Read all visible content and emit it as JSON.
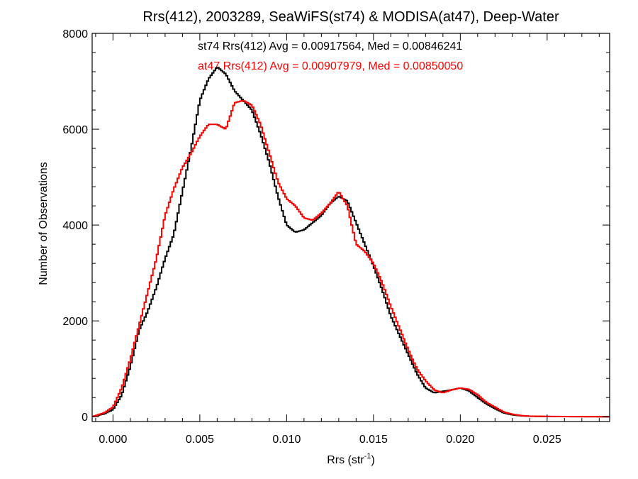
{
  "chart_data": {
    "type": "line",
    "title": "Rrs(412), 2003289, SeaWiFS(st74) & MODISA(at47), Deep-Water",
    "xlabel": "Rrs (str",
    "xlabel_sup": "-1",
    "xlabel_close": ")",
    "ylabel": "Number of Observations",
    "xlim": [
      -0.0012,
      0.0286
    ],
    "ylim": [
      -100,
      8000
    ],
    "x_ticks": [
      {
        "value": 0.0,
        "label": "0.000"
      },
      {
        "value": 0.005,
        "label": "0.005"
      },
      {
        "value": 0.01,
        "label": "0.010"
      },
      {
        "value": 0.015,
        "label": "0.015"
      },
      {
        "value": 0.02,
        "label": "0.020"
      },
      {
        "value": 0.025,
        "label": "0.025"
      }
    ],
    "y_ticks": [
      {
        "value": 0,
        "label": "0"
      },
      {
        "value": 2000,
        "label": "2000"
      },
      {
        "value": 4000,
        "label": "4000"
      },
      {
        "value": 6000,
        "label": "6000"
      },
      {
        "value": 8000,
        "label": "8000"
      }
    ],
    "grid": false,
    "annotations": [
      {
        "text": "st74 Rrs(412) Avg = 0.00917564, Med = 0.00846241",
        "color": "#000000"
      },
      {
        "text": "at47 Rrs(412) Avg = 0.00907979, Med = 0.00850050",
        "color": "#ff0000"
      }
    ],
    "series": [
      {
        "color": "#000000",
        "x": [
          -0.0012,
          -0.0005,
          0.0,
          0.0005,
          0.001,
          0.0015,
          0.002,
          0.0025,
          0.003,
          0.0035,
          0.004,
          0.0045,
          0.005,
          0.0055,
          0.006,
          0.0065,
          0.007,
          0.0075,
          0.008,
          0.0085,
          0.009,
          0.0095,
          0.01,
          0.0105,
          0.011,
          0.0115,
          0.012,
          0.0125,
          0.013,
          0.0135,
          0.014,
          0.0145,
          0.015,
          0.0155,
          0.016,
          0.0165,
          0.017,
          0.0175,
          0.018,
          0.0185,
          0.019,
          0.0195,
          0.02,
          0.0205,
          0.021,
          0.0215,
          0.022,
          0.0225,
          0.023,
          0.0235,
          0.024,
          0.025,
          0.026,
          0.027,
          0.0286
        ],
        "y": [
          0,
          60,
          150,
          450,
          1050,
          1800,
          2200,
          2700,
          3300,
          3800,
          4700,
          5600,
          6600,
          7050,
          7300,
          7150,
          6800,
          6600,
          6400,
          5900,
          5300,
          4600,
          4000,
          3850,
          3900,
          4050,
          4200,
          4450,
          4600,
          4500,
          4050,
          3600,
          3150,
          2650,
          2100,
          1700,
          1300,
          900,
          600,
          500,
          530,
          560,
          600,
          540,
          400,
          270,
          170,
          80,
          40,
          20,
          10,
          5,
          3,
          2,
          0
        ]
      },
      {
        "color": "#ff0000",
        "x": [
          -0.0012,
          -0.0005,
          0.0,
          0.0005,
          0.001,
          0.0015,
          0.002,
          0.0025,
          0.003,
          0.0035,
          0.004,
          0.0045,
          0.005,
          0.0055,
          0.006,
          0.0065,
          0.007,
          0.0075,
          0.008,
          0.0085,
          0.009,
          0.0095,
          0.01,
          0.0105,
          0.011,
          0.0115,
          0.012,
          0.0125,
          0.013,
          0.0135,
          0.014,
          0.0145,
          0.015,
          0.0155,
          0.016,
          0.0165,
          0.017,
          0.0175,
          0.018,
          0.0185,
          0.019,
          0.0195,
          0.02,
          0.0205,
          0.021,
          0.0215,
          0.022,
          0.0225,
          0.023,
          0.0235,
          0.024,
          0.025,
          0.026,
          0.027,
          0.0286
        ],
        "y": [
          0,
          80,
          200,
          600,
          1200,
          1900,
          2600,
          3300,
          4200,
          4750,
          5200,
          5500,
          5850,
          6100,
          6100,
          6000,
          6550,
          6600,
          6500,
          6100,
          5500,
          4900,
          4550,
          4400,
          4150,
          4100,
          4250,
          4450,
          4700,
          4400,
          3600,
          3450,
          3200,
          2800,
          2300,
          1850,
          1400,
          1000,
          750,
          560,
          500,
          560,
          600,
          570,
          460,
          300,
          200,
          100,
          50,
          25,
          12,
          6,
          4,
          2,
          0
        ]
      }
    ]
  }
}
